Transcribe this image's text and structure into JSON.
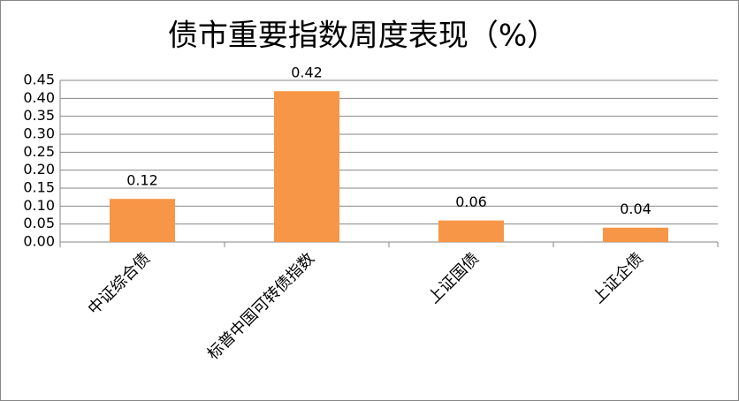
{
  "chart_data": {
    "type": "bar",
    "title": "债市重要指数周度表现（%）",
    "categories": [
      "中证综合债",
      "标普中国可转债指数",
      "上证国债",
      "上证企债"
    ],
    "values": [
      0.12,
      0.42,
      0.06,
      0.04
    ],
    "color": "#f79646",
    "ylim": [
      0,
      0.45
    ],
    "yticks": [
      {
        "value": 0,
        "label": "0.00"
      },
      0.05,
      {
        "value": 0.1,
        "label": "0.10"
      },
      0.15,
      {
        "value": 0.2,
        "label": "0.20"
      },
      0.25,
      {
        "value": 0.3,
        "label": "0.30"
      },
      0.35,
      {
        "value": 0.4,
        "label": "0.40"
      },
      0.45
    ],
    "grid": true
  }
}
